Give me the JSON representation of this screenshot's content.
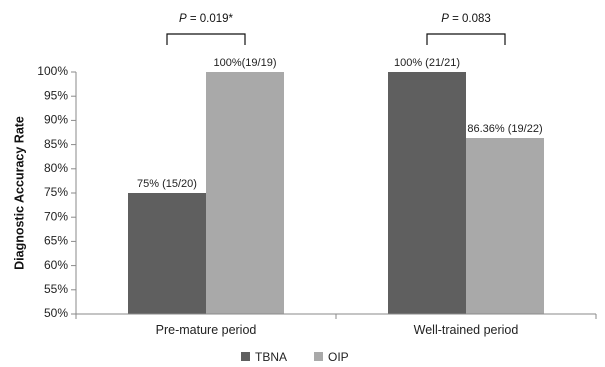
{
  "chart_data": {
    "type": "bar",
    "ylabel": "Diagnostic Accuracy Rate",
    "ylim": [
      0.5,
      1.0
    ],
    "ytick_values": [
      0.5,
      0.55,
      0.6,
      0.65,
      0.7,
      0.75,
      0.8,
      0.85,
      0.9,
      0.95,
      1.0
    ],
    "ytick_labels": [
      "50%",
      "55%",
      "60%",
      "65%",
      "70%",
      "75%",
      "80%",
      "85%",
      "90%",
      "95%",
      "100%"
    ],
    "categories": [
      "Pre-mature period",
      "Well-trained period"
    ],
    "series": [
      {
        "name": "TBNA",
        "color": "#5f5f5f",
        "values": [
          0.75,
          1.0
        ],
        "labels": [
          "75% (15/20)",
          "100% (21/21)"
        ]
      },
      {
        "name": "OIP",
        "color": "#a9a9a9",
        "values": [
          1.0,
          0.8636
        ],
        "labels": [
          "100%(19/19)",
          "86.36% (19/22)"
        ]
      }
    ],
    "comparisons": [
      {
        "p_label": "P",
        "p_text": " = 0.019*"
      },
      {
        "p_label": "P",
        "p_text": " = 0.083"
      }
    ],
    "grid": false,
    "legend_position": "bottom"
  }
}
